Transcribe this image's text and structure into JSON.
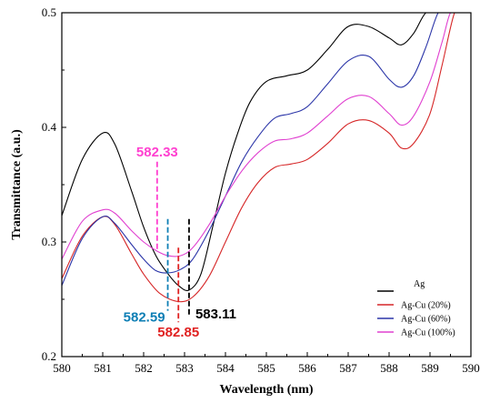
{
  "chart_data": {
    "type": "line",
    "xlabel": "Wavelength (nm)",
    "ylabel": "Transmittance (a.u.)",
    "xlim": [
      580,
      590
    ],
    "ylim": [
      0.2,
      0.5
    ],
    "xticks": [
      "580",
      "581",
      "582",
      "583",
      "584",
      "585",
      "586",
      "587",
      "588",
      "589",
      "590"
    ],
    "yticks": [
      "0.2",
      "0.3",
      "0.4",
      "0.5"
    ],
    "legend_position": "bottom-right",
    "series": [
      {
        "name": "Ag",
        "color": "#000000",
        "points": [
          [
            580,
            0.323
          ],
          [
            580.5,
            0.372
          ],
          [
            581,
            0.395
          ],
          [
            581.3,
            0.385
          ],
          [
            581.7,
            0.345
          ],
          [
            582,
            0.313
          ],
          [
            582.3,
            0.288
          ],
          [
            582.6,
            0.272
          ],
          [
            582.85,
            0.262
          ],
          [
            583.11,
            0.258
          ],
          [
            583.4,
            0.272
          ],
          [
            583.7,
            0.315
          ],
          [
            584,
            0.36
          ],
          [
            584.3,
            0.395
          ],
          [
            584.6,
            0.422
          ],
          [
            585,
            0.44
          ],
          [
            585.5,
            0.445
          ],
          [
            586,
            0.45
          ],
          [
            586.5,
            0.468
          ],
          [
            587,
            0.488
          ],
          [
            587.5,
            0.488
          ],
          [
            588,
            0.478
          ],
          [
            588.3,
            0.472
          ],
          [
            588.6,
            0.482
          ],
          [
            588.9,
            0.5
          ],
          [
            589.2,
            0.5
          ]
        ]
      },
      {
        "name": "Ag-Cu (20%)",
        "color": "#d62728",
        "points": [
          [
            580,
            0.268
          ],
          [
            580.5,
            0.305
          ],
          [
            581,
            0.322
          ],
          [
            581.3,
            0.315
          ],
          [
            581.7,
            0.29
          ],
          [
            582,
            0.272
          ],
          [
            582.4,
            0.255
          ],
          [
            582.85,
            0.248
          ],
          [
            583.2,
            0.252
          ],
          [
            583.6,
            0.27
          ],
          [
            584,
            0.3
          ],
          [
            584.4,
            0.33
          ],
          [
            584.8,
            0.352
          ],
          [
            585.2,
            0.365
          ],
          [
            585.6,
            0.368
          ],
          [
            586,
            0.372
          ],
          [
            586.5,
            0.386
          ],
          [
            587,
            0.403
          ],
          [
            587.5,
            0.406
          ],
          [
            588,
            0.395
          ],
          [
            588.3,
            0.382
          ],
          [
            588.6,
            0.386
          ],
          [
            589,
            0.412
          ],
          [
            589.3,
            0.455
          ],
          [
            589.6,
            0.5
          ],
          [
            589.8,
            0.5
          ]
        ]
      },
      {
        "name": "Ag-Cu (60%)",
        "color": "#2b35a8",
        "points": [
          [
            580,
            0.262
          ],
          [
            580.5,
            0.303
          ],
          [
            581,
            0.322
          ],
          [
            581.3,
            0.316
          ],
          [
            581.7,
            0.298
          ],
          [
            582,
            0.285
          ],
          [
            582.3,
            0.275
          ],
          [
            582.59,
            0.273
          ],
          [
            582.9,
            0.276
          ],
          [
            583.2,
            0.285
          ],
          [
            583.6,
            0.31
          ],
          [
            584,
            0.34
          ],
          [
            584.4,
            0.37
          ],
          [
            584.8,
            0.392
          ],
          [
            585.2,
            0.408
          ],
          [
            585.6,
            0.412
          ],
          [
            586,
            0.418
          ],
          [
            586.5,
            0.438
          ],
          [
            587,
            0.458
          ],
          [
            587.5,
            0.462
          ],
          [
            588,
            0.442
          ],
          [
            588.3,
            0.435
          ],
          [
            588.6,
            0.445
          ],
          [
            588.9,
            0.47
          ],
          [
            589.2,
            0.5
          ],
          [
            589.4,
            0.5
          ]
        ]
      },
      {
        "name": "Ag-Cu (100%)",
        "color": "#e040d0",
        "points": [
          [
            580,
            0.285
          ],
          [
            580.5,
            0.318
          ],
          [
            581,
            0.328
          ],
          [
            581.3,
            0.325
          ],
          [
            581.7,
            0.31
          ],
          [
            582,
            0.3
          ],
          [
            582.33,
            0.292
          ],
          [
            582.6,
            0.288
          ],
          [
            582.9,
            0.288
          ],
          [
            583.2,
            0.295
          ],
          [
            583.6,
            0.315
          ],
          [
            584,
            0.34
          ],
          [
            584.4,
            0.362
          ],
          [
            584.8,
            0.378
          ],
          [
            585.2,
            0.388
          ],
          [
            585.6,
            0.39
          ],
          [
            586,
            0.395
          ],
          [
            586.5,
            0.41
          ],
          [
            587,
            0.425
          ],
          [
            587.5,
            0.427
          ],
          [
            588,
            0.412
          ],
          [
            588.3,
            0.402
          ],
          [
            588.6,
            0.41
          ],
          [
            589,
            0.44
          ],
          [
            589.3,
            0.475
          ],
          [
            589.5,
            0.5
          ],
          [
            589.7,
            0.5
          ]
        ]
      }
    ],
    "annotations": [
      {
        "text": "582.33",
        "x": 582.33,
        "y_top": 0.37,
        "y_bottom": 0.292,
        "color": "#ff40d0",
        "label_pos": "above"
      },
      {
        "text": "582.59",
        "x": 582.59,
        "y_top": 0.32,
        "y_bottom": 0.24,
        "color": "#0f7fb5",
        "label_pos": "below-left"
      },
      {
        "text": "582.85",
        "x": 582.85,
        "y_top": 0.295,
        "y_bottom": 0.23,
        "color": "#e02020",
        "label_pos": "below"
      },
      {
        "text": "583.11",
        "x": 583.11,
        "y_top": 0.32,
        "y_bottom": 0.235,
        "color": "#000000",
        "label_pos": "below-right"
      }
    ]
  }
}
